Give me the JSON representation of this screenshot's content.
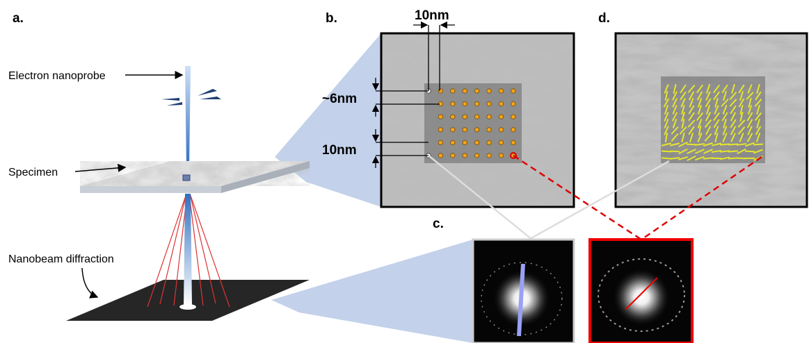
{
  "panels": {
    "a": {
      "label": "a.",
      "annotations": [
        "Electron nanoprobe",
        "Specimen",
        "Nanobeam diffraction"
      ]
    },
    "b": {
      "label": "b.",
      "scale_labels": [
        "10nm",
        "~6nm",
        "10nm"
      ]
    },
    "c": {
      "label": "c."
    },
    "d": {
      "label": "d."
    }
  }
}
